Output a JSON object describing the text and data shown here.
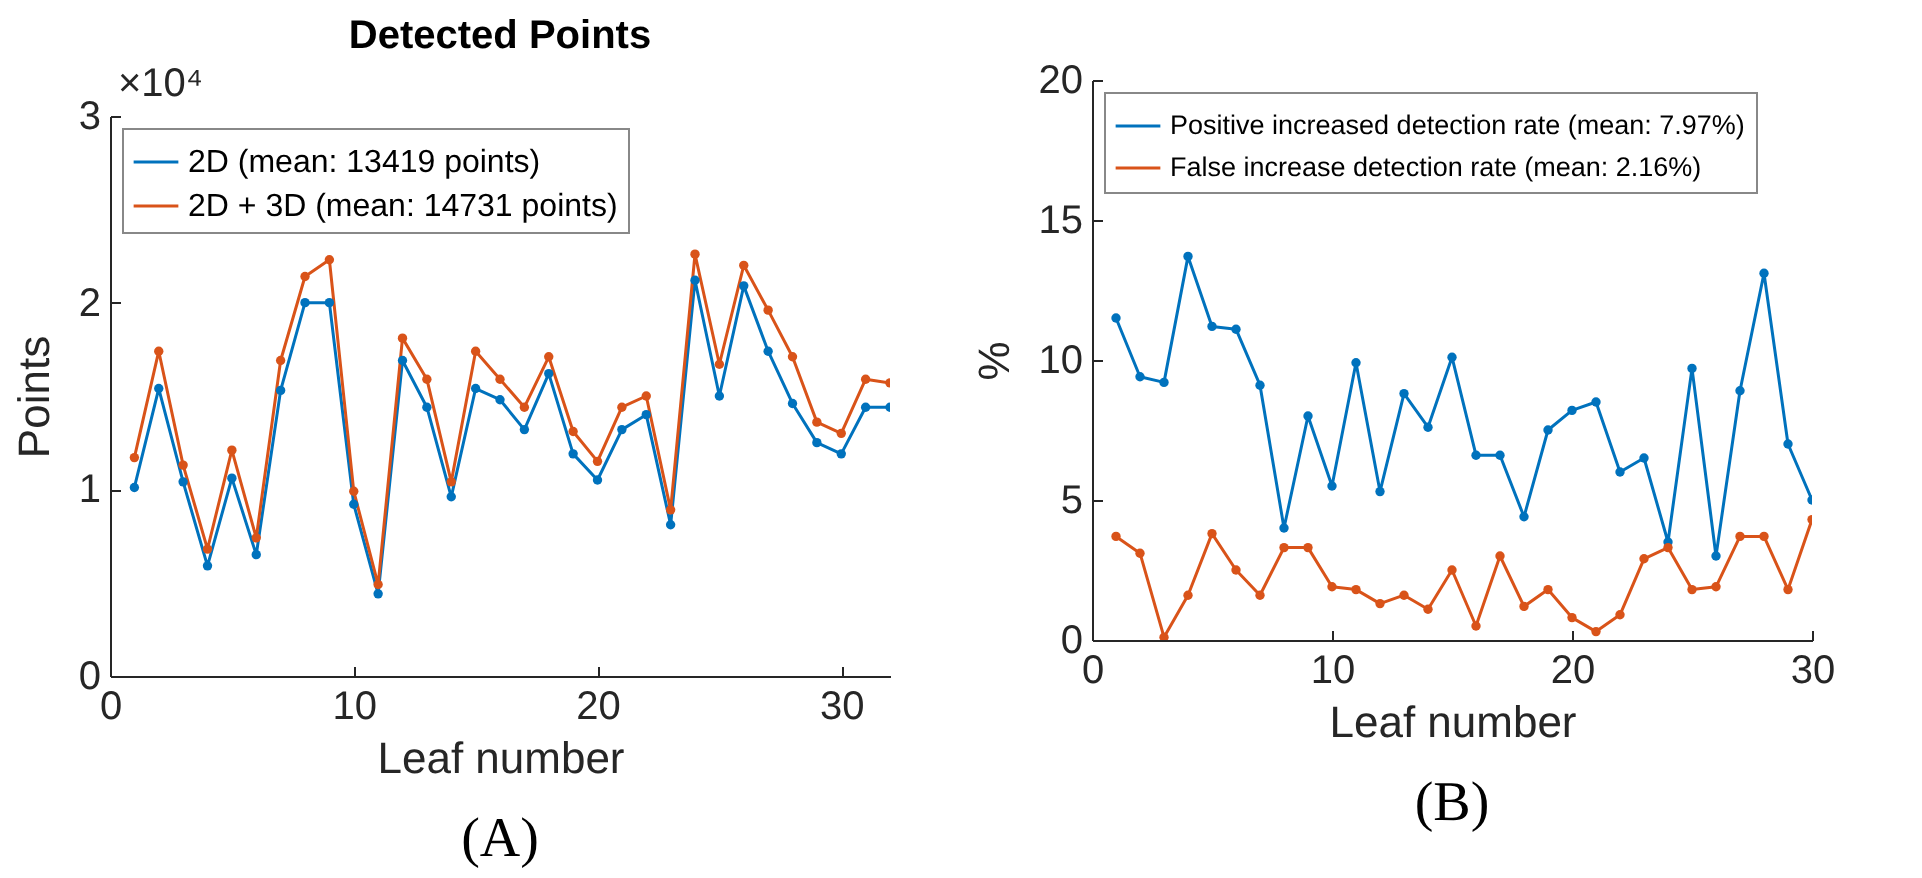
{
  "chart_data": [
    {
      "type": "line",
      "title": "Detected Points",
      "xlabel": "Leaf number",
      "ylabel": "Points",
      "annotations": [
        "×10⁴",
        "(A)"
      ],
      "x": [
        1,
        2,
        3,
        4,
        5,
        6,
        7,
        8,
        9,
        10,
        11,
        12,
        13,
        14,
        15,
        16,
        17,
        18,
        19,
        20,
        21,
        22,
        23,
        24,
        25,
        26,
        27,
        28,
        29,
        30,
        31,
        32
      ],
      "series": [
        {
          "name": "2D (mean: 13419 points)",
          "color": "#0072bd",
          "values": [
            1.01,
            1.54,
            1.04,
            0.59,
            1.06,
            0.65,
            1.53,
            2.0,
            2.0,
            0.92,
            0.44,
            1.69,
            1.44,
            0.96,
            1.54,
            1.48,
            1.32,
            1.62,
            1.19,
            1.05,
            1.32,
            1.4,
            0.81,
            2.12,
            1.5,
            2.09,
            1.74,
            1.46,
            1.25,
            1.19,
            1.44,
            1.44
          ]
        },
        {
          "name": "2D + 3D (mean: 14731 points)",
          "color": "#d95319",
          "values": [
            1.17,
            1.74,
            1.13,
            0.68,
            1.21,
            0.74,
            1.69,
            2.14,
            2.23,
            0.99,
            0.49,
            1.81,
            1.59,
            1.04,
            1.74,
            1.59,
            1.44,
            1.71,
            1.31,
            1.15,
            1.44,
            1.5,
            0.89,
            2.26,
            1.67,
            2.2,
            1.96,
            1.71,
            1.36,
            1.3,
            1.59,
            1.57
          ]
        }
      ],
      "xlim": [
        0,
        32
      ],
      "xticks": [
        0,
        10,
        20,
        30
      ],
      "ylim": [
        0,
        3
      ],
      "yticks": [
        0,
        1,
        2,
        3
      ],
      "legend": "top left",
      "marker": "circle",
      "line_style": "solid"
    },
    {
      "type": "line",
      "xlabel": "Leaf number",
      "ylabel": "%",
      "annotations": [
        "(B)"
      ],
      "x": [
        1,
        2,
        3,
        4,
        5,
        6,
        7,
        8,
        9,
        10,
        11,
        12,
        13,
        14,
        15,
        16,
        17,
        18,
        19,
        20,
        21,
        22,
        23,
        24,
        25,
        26,
        27,
        28,
        29,
        30
      ],
      "series": [
        {
          "name": "Positive increased detection rate (mean: 7.97%)",
          "color": "#0072bd",
          "values": [
            11.5,
            9.4,
            9.2,
            13.7,
            11.2,
            11.1,
            9.1,
            4.0,
            8.0,
            5.5,
            9.9,
            5.3,
            8.8,
            7.6,
            10.1,
            6.6,
            6.6,
            4.4,
            7.5,
            8.2,
            8.5,
            6.0,
            6.5,
            3.5,
            9.7,
            3.0,
            8.9,
            13.1,
            7.0,
            5.0
          ]
        },
        {
          "name": "False increase detection rate (mean: 2.16%)",
          "color": "#d95319",
          "values": [
            3.7,
            3.1,
            0.1,
            1.6,
            3.8,
            2.5,
            1.6,
            3.3,
            3.3,
            1.9,
            1.8,
            1.3,
            1.6,
            1.1,
            2.5,
            0.5,
            3.0,
            1.2,
            1.8,
            0.8,
            0.3,
            0.9,
            2.9,
            3.3,
            1.8,
            1.9,
            3.7,
            3.7,
            1.8,
            4.3
          ]
        }
      ],
      "xlim": [
        0,
        30
      ],
      "xticks": [
        0,
        10,
        20,
        30
      ],
      "ylim": [
        0,
        20
      ],
      "yticks": [
        0,
        5,
        10,
        15,
        20
      ],
      "legend": "top left",
      "marker": "circle",
      "line_style": "solid"
    }
  ]
}
